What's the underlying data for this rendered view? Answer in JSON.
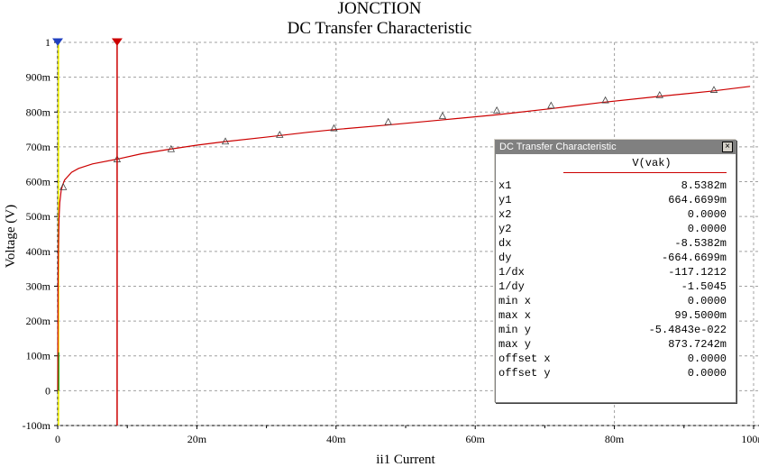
{
  "chart_data": {
    "type": "line",
    "title": "JONCTION",
    "subtitle": "DC Transfer Characteristic",
    "xlabel": "ii1 Current",
    "ylabel": "Voltage (V)",
    "xlim": [
      0,
      0.1
    ],
    "ylim": [
      -0.1,
      1
    ],
    "x_ticks": [
      0,
      0.02,
      0.04,
      0.06,
      0.08,
      0.1
    ],
    "x_tick_labels": [
      "0",
      "20m",
      "40m",
      "60m",
      "80m",
      "100m"
    ],
    "y_ticks": [
      -0.1,
      0,
      0.1,
      0.2,
      0.3,
      0.4,
      0.5,
      0.6,
      0.7,
      0.8,
      0.9,
      1
    ],
    "y_tick_labels": [
      "-100m",
      "0",
      "100m",
      "200m",
      "300m",
      "400m",
      "500m",
      "600m",
      "700m",
      "800m",
      "900m",
      "1"
    ],
    "grid": true,
    "series": [
      {
        "name": "V(vak)",
        "color": "#cc0000",
        "x": [
          0,
          5e-05,
          0.0001,
          0.0002,
          0.0003,
          0.0005,
          0.0007,
          0.001,
          0.002,
          0.003,
          0.005,
          0.0085382,
          0.012,
          0.016,
          0.02,
          0.024,
          0.03,
          0.036,
          0.04,
          0.047,
          0.055,
          0.063,
          0.071,
          0.078,
          0.086,
          0.094,
          0.0995
        ],
        "y": [
          0,
          0.3,
          0.4,
          0.5,
          0.54,
          0.575,
          0.59,
          0.605,
          0.627,
          0.638,
          0.651,
          0.6647,
          0.68,
          0.693,
          0.705,
          0.715,
          0.728,
          0.742,
          0.75,
          0.762,
          0.777,
          0.792,
          0.81,
          0.827,
          0.844,
          0.86,
          0.8737
        ]
      }
    ],
    "markers": {
      "shape": "triangle",
      "x": [
        0.0008,
        0.0085382,
        0.0163,
        0.0241,
        0.0319,
        0.0397,
        0.0475,
        0.0553,
        0.0631,
        0.0709,
        0.0787,
        0.0865,
        0.0943
      ],
      "y": [
        0.585,
        0.6647,
        0.694,
        0.716,
        0.735,
        0.754,
        0.772,
        0.789,
        0.805,
        0.819,
        0.834,
        0.849,
        0.864
      ]
    },
    "cursors": [
      {
        "name": "cursor-1",
        "x": 0.0085382,
        "color": "#cc0000"
      },
      {
        "name": "cursor-2",
        "x": 0,
        "color": "#ffff00"
      }
    ]
  },
  "cursor_panel": {
    "title": "DC Transfer Characteristic",
    "close_label": "×",
    "trace_name": "V(vak)",
    "rows": [
      {
        "key": "x1",
        "value": "8.5382m"
      },
      {
        "key": "y1",
        "value": "664.6699m"
      },
      {
        "key": "x2",
        "value": "0.0000"
      },
      {
        "key": "y2",
        "value": "0.0000"
      },
      {
        "key": "dx",
        "value": "-8.5382m"
      },
      {
        "key": "dy",
        "value": "-664.6699m"
      },
      {
        "key": "1/dx",
        "value": "-117.1212"
      },
      {
        "key": "1/dy",
        "value": "-1.5045"
      },
      {
        "key": "min x",
        "value": "0.0000"
      },
      {
        "key": "max x",
        "value": "99.5000m"
      },
      {
        "key": "min y",
        "value": "-5.4843e-022"
      },
      {
        "key": "max y",
        "value": "873.7242m"
      },
      {
        "key": "offset x",
        "value": "0.0000"
      },
      {
        "key": "offset y",
        "value": "0.0000"
      }
    ]
  }
}
